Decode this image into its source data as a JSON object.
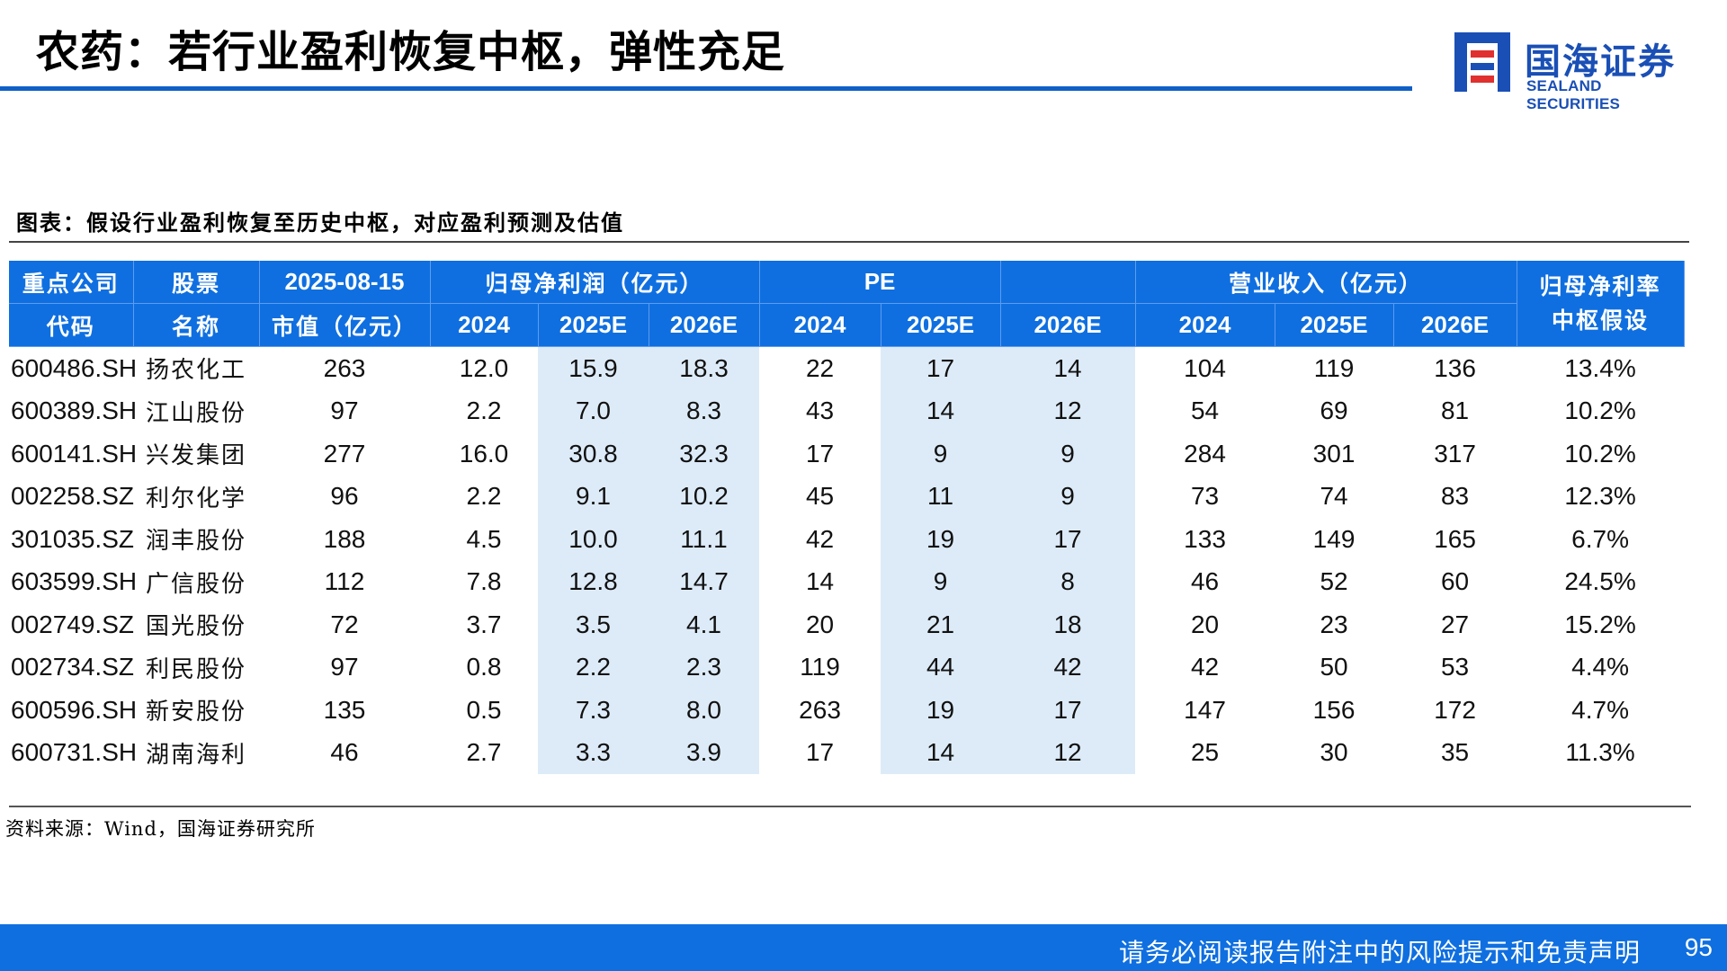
{
  "slide": {
    "title": "农药：若行业盈利恢复中枢，弹性充足",
    "page_number": "95",
    "footer_disclaimer": "请务必阅读报告附注中的风险提示和免责声明"
  },
  "brand": {
    "name_cn": "国海证券",
    "name_en": "SEALAND SECURITIES",
    "logo_icon": "sealand-logo-icon",
    "color": "#1A4FB5"
  },
  "figure": {
    "title": "图表：假设行业盈利恢复至历史中枢，对应盈利预测及估值",
    "source": "资料来源：Wind，国海证券研究所"
  },
  "colors": {
    "header_bg": "#0F6FE0",
    "highlight_bg": "#DDEBF8",
    "rule": "#0F5FC8"
  },
  "table": {
    "header_row1": {
      "code": "重点公司",
      "name": "股票",
      "date": "2025-08-15",
      "profit": "归母净利润（亿元）",
      "pe": "PE",
      "revenue": "营业收入（亿元）",
      "margin_l1": "归母净利率",
      "margin_l2": "中枢假设"
    },
    "header_row2": {
      "code": "代码",
      "name": "名称",
      "mcap": "市值（亿元）",
      "profit_2024": "2024",
      "profit_2025e": "2025E",
      "profit_2026e": "2026E",
      "pe_2024": "2024",
      "pe_2025e": "2025E",
      "pe_2026e": "2026E",
      "rev_2024": "2024",
      "rev_2025e": "2025E",
      "rev_2026e": "2026E"
    },
    "rows": [
      [
        "600486.SH",
        "扬农化工",
        "263",
        "12.0",
        "15.9",
        "18.3",
        "22",
        "17",
        "14",
        "104",
        "119",
        "136",
        "13.4%"
      ],
      [
        "600389.SH",
        "江山股份",
        "97",
        "2.2",
        "7.0",
        "8.3",
        "43",
        "14",
        "12",
        "54",
        "69",
        "81",
        "10.2%"
      ],
      [
        "600141.SH",
        "兴发集团",
        "277",
        "16.0",
        "30.8",
        "32.3",
        "17",
        "9",
        "9",
        "284",
        "301",
        "317",
        "10.2%"
      ],
      [
        "002258.SZ",
        "利尔化学",
        "96",
        "2.2",
        "9.1",
        "10.2",
        "45",
        "11",
        "9",
        "73",
        "74",
        "83",
        "12.3%"
      ],
      [
        "301035.SZ",
        "润丰股份",
        "188",
        "4.5",
        "10.0",
        "11.1",
        "42",
        "19",
        "17",
        "133",
        "149",
        "165",
        "6.7%"
      ],
      [
        "603599.SH",
        "广信股份",
        "112",
        "7.8",
        "12.8",
        "14.7",
        "14",
        "9",
        "8",
        "46",
        "52",
        "60",
        "24.5%"
      ],
      [
        "002749.SZ",
        "国光股份",
        "72",
        "3.7",
        "3.5",
        "4.1",
        "20",
        "21",
        "18",
        "20",
        "23",
        "27",
        "15.2%"
      ],
      [
        "002734.SZ",
        "利民股份",
        "97",
        "0.8",
        "2.2",
        "2.3",
        "119",
        "44",
        "42",
        "42",
        "50",
        "53",
        "4.4%"
      ],
      [
        "600596.SH",
        "新安股份",
        "135",
        "0.5",
        "7.3",
        "8.0",
        "263",
        "19",
        "17",
        "147",
        "156",
        "172",
        "4.7%"
      ],
      [
        "600731.SH",
        "湖南海利",
        "46",
        "2.7",
        "3.3",
        "3.9",
        "17",
        "14",
        "12",
        "25",
        "30",
        "35",
        "11.3%"
      ]
    ]
  }
}
